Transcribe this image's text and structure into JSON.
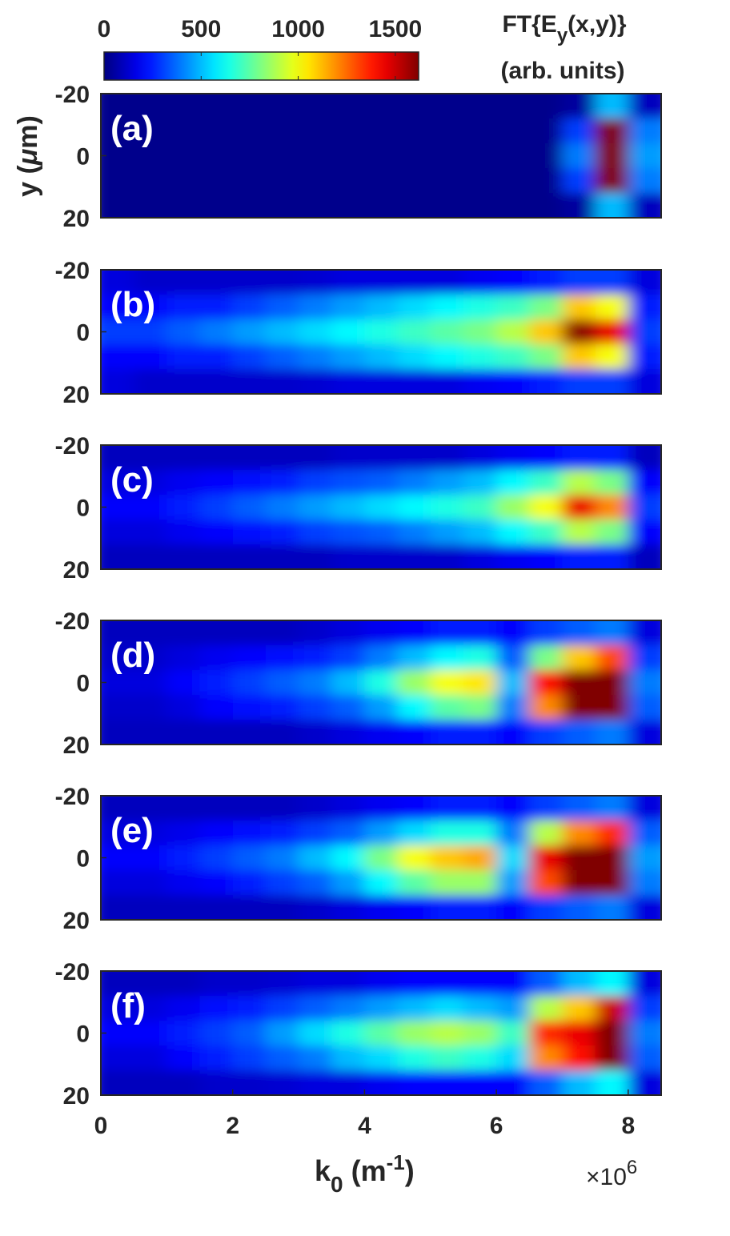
{
  "chart_data": [
    {
      "type": "heatmap",
      "label": "(a)",
      "ylabel": {
        "main": "y (",
        "mu": "μ",
        "rest": "m)"
      },
      "x": [
        0.25,
        0.75,
        1.25,
        1.75,
        2.25,
        2.75,
        3.25,
        3.75,
        4.25,
        4.75,
        5.25,
        5.75,
        6.25,
        6.75,
        7.25,
        7.75,
        8.25
      ],
      "y": [
        -16,
        -8,
        0,
        8,
        16
      ],
      "z": [
        [
          20,
          20,
          20,
          20,
          20,
          20,
          20,
          20,
          20,
          20,
          20,
          20,
          20,
          20,
          50,
          500,
          100
        ],
        [
          20,
          20,
          20,
          20,
          20,
          20,
          20,
          20,
          20,
          20,
          20,
          20,
          20,
          20,
          300,
          1620,
          400
        ],
        [
          20,
          20,
          20,
          20,
          20,
          20,
          20,
          20,
          20,
          20,
          20,
          20,
          20,
          20,
          400,
          1620,
          450
        ],
        [
          20,
          20,
          20,
          20,
          20,
          20,
          20,
          20,
          20,
          20,
          20,
          20,
          20,
          20,
          300,
          1620,
          400
        ],
        [
          20,
          20,
          20,
          20,
          20,
          20,
          20,
          20,
          20,
          20,
          20,
          20,
          20,
          20,
          50,
          500,
          100
        ]
      ],
      "xlim": [
        0,
        8.5
      ],
      "ylim": [
        -20,
        20
      ],
      "yreverse": true,
      "yticks": [
        -20,
        0,
        20
      ]
    },
    {
      "type": "heatmap",
      "label": "(b)",
      "x": [
        0.25,
        0.75,
        1.25,
        1.75,
        2.25,
        2.75,
        3.25,
        3.75,
        4.25,
        4.75,
        5.25,
        5.75,
        6.25,
        6.75,
        7.25,
        7.75,
        8.25
      ],
      "y": [
        -16,
        -8,
        0,
        8,
        16
      ],
      "z": [
        [
          150,
          120,
          120,
          120,
          120,
          120,
          130,
          150,
          150,
          150,
          150,
          180,
          200,
          250,
          300,
          300,
          150
        ],
        [
          200,
          200,
          250,
          250,
          300,
          350,
          400,
          450,
          500,
          550,
          600,
          650,
          700,
          800,
          1100,
          1000,
          250
        ],
        [
          300,
          300,
          350,
          400,
          450,
          500,
          550,
          600,
          650,
          700,
          750,
          800,
          900,
          1100,
          1600,
          1450,
          300
        ],
        [
          200,
          200,
          250,
          250,
          300,
          350,
          400,
          450,
          500,
          550,
          600,
          650,
          700,
          800,
          1100,
          1000,
          250
        ],
        [
          150,
          120,
          120,
          120,
          120,
          120,
          130,
          150,
          150,
          150,
          150,
          180,
          200,
          250,
          300,
          300,
          150
        ]
      ],
      "xlim": [
        0,
        8.5
      ],
      "ylim": [
        -20,
        20
      ],
      "yreverse": true,
      "yticks": [
        -20,
        0,
        20
      ]
    },
    {
      "type": "heatmap",
      "label": "(c)",
      "x": [
        0.25,
        0.75,
        1.25,
        1.75,
        2.25,
        2.75,
        3.25,
        3.75,
        4.25,
        4.75,
        5.25,
        5.75,
        6.25,
        6.75,
        7.25,
        7.75,
        8.25
      ],
      "y": [
        -16,
        -8,
        0,
        8,
        16
      ],
      "z": [
        [
          100,
          100,
          100,
          100,
          100,
          100,
          100,
          120,
          120,
          120,
          120,
          150,
          180,
          200,
          250,
          250,
          100
        ],
        [
          150,
          150,
          180,
          200,
          220,
          250,
          300,
          330,
          350,
          400,
          450,
          500,
          600,
          700,
          900,
          800,
          200
        ],
        [
          200,
          200,
          250,
          300,
          350,
          400,
          450,
          500,
          550,
          600,
          650,
          700,
          850,
          1000,
          1450,
          1200,
          300
        ],
        [
          150,
          150,
          180,
          200,
          220,
          250,
          300,
          330,
          350,
          400,
          450,
          500,
          600,
          700,
          900,
          800,
          200
        ],
        [
          100,
          100,
          100,
          100,
          100,
          100,
          100,
          120,
          120,
          120,
          120,
          150,
          180,
          200,
          250,
          250,
          100
        ]
      ],
      "xlim": [
        0,
        8.5
      ],
      "ylim": [
        -20,
        20
      ],
      "yreverse": true,
      "yticks": [
        -20,
        0,
        20
      ]
    },
    {
      "type": "heatmap",
      "label": "(d)",
      "x": [
        0.25,
        0.75,
        1.25,
        1.75,
        2.25,
        2.75,
        3.25,
        3.75,
        4.25,
        4.75,
        5.25,
        5.75,
        6.25,
        6.75,
        7.25,
        7.75,
        8.25
      ],
      "y": [
        -16,
        -8,
        0,
        8,
        16
      ],
      "z": [
        [
          100,
          100,
          100,
          100,
          100,
          100,
          120,
          150,
          180,
          200,
          250,
          250,
          200,
          300,
          350,
          400,
          150
        ],
        [
          120,
          120,
          150,
          180,
          200,
          220,
          250,
          300,
          400,
          500,
          600,
          650,
          350,
          800,
          1100,
          1300,
          300
        ],
        [
          150,
          150,
          200,
          250,
          300,
          350,
          400,
          500,
          650,
          850,
          1000,
          1050,
          500,
          1400,
          1620,
          1620,
          400
        ],
        [
          120,
          120,
          150,
          200,
          220,
          250,
          300,
          350,
          450,
          600,
          750,
          800,
          400,
          1200,
          1620,
          1620,
          350
        ],
        [
          100,
          100,
          100,
          100,
          100,
          100,
          120,
          150,
          180,
          200,
          250,
          250,
          200,
          300,
          350,
          400,
          150
        ]
      ],
      "xlim": [
        0,
        8.5
      ],
      "ylim": [
        -20,
        20
      ],
      "yreverse": true,
      "yticks": [
        -20,
        0,
        20
      ]
    },
    {
      "type": "heatmap",
      "label": "(e)",
      "x": [
        0.25,
        0.75,
        1.25,
        1.75,
        2.25,
        2.75,
        3.25,
        3.75,
        4.25,
        4.75,
        5.25,
        5.75,
        6.25,
        6.75,
        7.25,
        7.75,
        8.25
      ],
      "y": [
        -16,
        -8,
        0,
        8,
        16
      ],
      "z": [
        [
          100,
          100,
          100,
          100,
          100,
          100,
          120,
          150,
          180,
          200,
          250,
          250,
          200,
          300,
          350,
          400,
          150
        ],
        [
          150,
          150,
          170,
          200,
          220,
          250,
          300,
          350,
          450,
          550,
          650,
          650,
          400,
          900,
          1200,
          1350,
          350
        ],
        [
          200,
          200,
          250,
          300,
          350,
          400,
          500,
          600,
          800,
          1000,
          1100,
          1150,
          550,
          1450,
          1620,
          1620,
          450
        ],
        [
          150,
          150,
          180,
          200,
          250,
          300,
          350,
          450,
          600,
          750,
          850,
          850,
          450,
          1300,
          1620,
          1620,
          400
        ],
        [
          100,
          100,
          100,
          100,
          100,
          100,
          120,
          150,
          180,
          200,
          250,
          250,
          200,
          300,
          350,
          400,
          150
        ]
      ],
      "xlim": [
        0,
        8.5
      ],
      "ylim": [
        -20,
        20
      ],
      "yreverse": true,
      "yticks": [
        -20,
        0,
        20
      ]
    },
    {
      "type": "heatmap",
      "label": "(f)",
      "x": [
        0.25,
        0.75,
        1.25,
        1.75,
        2.25,
        2.75,
        3.25,
        3.75,
        4.25,
        4.75,
        5.25,
        5.75,
        6.25,
        6.75,
        7.25,
        7.75,
        8.25
      ],
      "y": [
        -16,
        -8,
        0,
        8,
        16
      ],
      "z": [
        [
          100,
          100,
          100,
          120,
          120,
          130,
          150,
          150,
          180,
          200,
          200,
          200,
          200,
          350,
          500,
          600,
          150
        ],
        [
          150,
          150,
          180,
          220,
          250,
          300,
          350,
          400,
          450,
          500,
          550,
          500,
          450,
          900,
          1100,
          1500,
          300
        ],
        [
          200,
          200,
          250,
          300,
          350,
          450,
          550,
          650,
          750,
          850,
          900,
          850,
          700,
          1350,
          1450,
          1620,
          400
        ],
        [
          150,
          150,
          200,
          250,
          300,
          350,
          400,
          500,
          550,
          650,
          700,
          650,
          550,
          1200,
          1400,
          1620,
          350
        ],
        [
          100,
          100,
          100,
          120,
          120,
          130,
          150,
          150,
          180,
          200,
          200,
          200,
          200,
          350,
          500,
          600,
          150
        ]
      ],
      "xlim": [
        0,
        8.5
      ],
      "ylim": [
        -20,
        20
      ],
      "yreverse": true,
      "yticks": [
        -20,
        0,
        20
      ],
      "xticks": [
        0,
        2,
        4,
        6,
        8
      ],
      "xlabel": {
        "k": "k",
        "sub": "0",
        "unit": " (m",
        "sup": "-1",
        "close": ")"
      },
      "xexponent": {
        "base": "×10",
        "sup": "6"
      }
    }
  ],
  "colorbar": {
    "colormap": "jet",
    "clim": [
      0,
      1620
    ],
    "ticks": [
      0,
      500,
      1000,
      1500
    ],
    "label": {
      "main": "FT{E",
      "sub": "y",
      "rest": "(x,y)}",
      "line2": "(arb. units)"
    }
  }
}
